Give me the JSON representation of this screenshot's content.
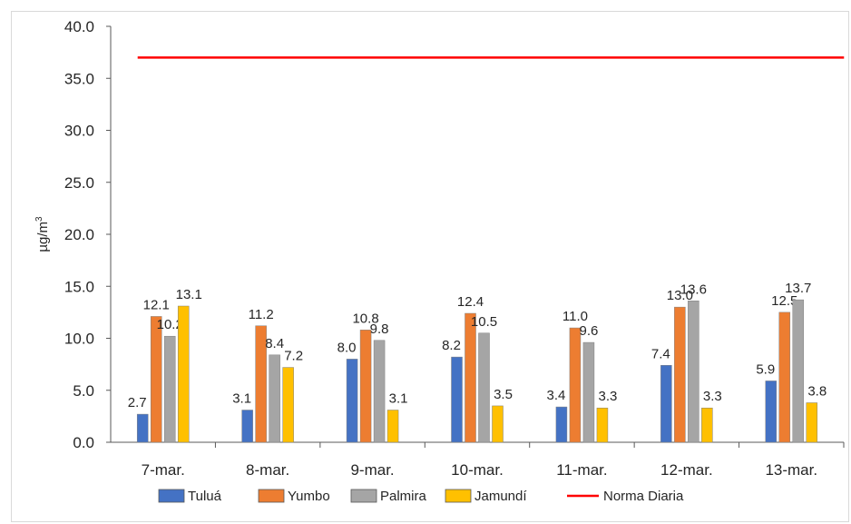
{
  "chart_data": {
    "type": "bar",
    "title": "",
    "xlabel": "",
    "ylabel": "µg/m",
    "ylabel_superscript": "3",
    "ylim": [
      0,
      40
    ],
    "ytick_step": 5,
    "ytick_labels": [
      "0.0",
      "5.0",
      "10.0",
      "15.0",
      "20.0",
      "25.0",
      "30.0",
      "35.0",
      "40.0"
    ],
    "categories": [
      "7-mar.",
      "8-mar.",
      "9-mar.",
      "10-mar.",
      "11-mar.",
      "12-mar.",
      "13-mar."
    ],
    "series": [
      {
        "name": "Tuluá",
        "color": "#4472c4",
        "values": [
          2.7,
          3.1,
          8.0,
          8.2,
          3.4,
          7.4,
          5.9
        ],
        "labels": [
          "2.7",
          "3.1",
          "8.0",
          "8.2",
          "3.4",
          "7.4",
          "5.9"
        ]
      },
      {
        "name": "Yumbo",
        "color": "#ed7d31",
        "values": [
          12.1,
          11.2,
          10.8,
          12.4,
          11.0,
          13.0,
          12.5
        ],
        "labels": [
          "12.1",
          "11.2",
          "10.8",
          "12.4",
          "11.0",
          "13.0",
          "12.5"
        ]
      },
      {
        "name": "Palmira",
        "color": "#a5a5a5",
        "values": [
          10.2,
          8.4,
          9.8,
          10.5,
          9.6,
          13.6,
          13.7
        ],
        "labels": [
          "10.2",
          "8.4",
          "9.8",
          "10.5",
          "9.6",
          "13.6",
          "13.7"
        ]
      },
      {
        "name": "Jamundí",
        "color": "#ffc000",
        "values": [
          13.1,
          7.2,
          3.1,
          3.5,
          3.3,
          3.3,
          3.8
        ],
        "labels": [
          "13.1",
          "7.2",
          "3.1",
          "3.5",
          "3.3",
          "3.3",
          "3.8"
        ]
      }
    ],
    "reference_line": {
      "name": "Norma Diaria",
      "value": 37,
      "color": "#ff0000"
    },
    "legend_position": "bottom",
    "grid": false
  }
}
